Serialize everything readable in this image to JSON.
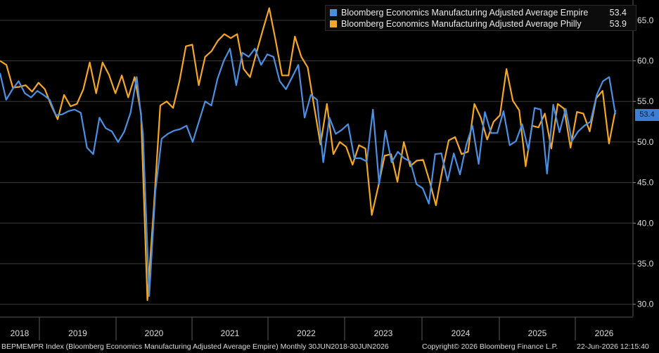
{
  "chart_data": {
    "type": "line",
    "x_axis": {
      "years": [
        "2018",
        "2019",
        "2020",
        "2021",
        "2022",
        "2023",
        "2024",
        "2025",
        "2026"
      ]
    },
    "y_axis": {
      "ylim": [
        28.5,
        67.5
      ],
      "ticks": [
        "30.0",
        "35.0",
        "40.0",
        "45.0",
        "50.0",
        "55.0",
        "60.0",
        "65.0"
      ],
      "position": "right"
    },
    "grid": true,
    "legend_placement": "top-right",
    "series": [
      {
        "name": "Bloomberg Economics Manufacturing Adjusted Average Empire",
        "legend_value": "53.4",
        "color": "#4a90e2",
        "values": [
          58.5,
          55.2,
          56.5,
          57.5,
          56.0,
          55.5,
          56.3,
          55.8,
          55.2,
          53.3,
          53.4,
          53.8,
          54.0,
          53.6,
          49.3,
          48.5,
          53.0,
          51.7,
          51.3,
          50.0,
          51.3,
          53.6,
          58.0,
          51.0,
          31.0,
          44.0,
          50.4,
          51.0,
          51.4,
          51.6,
          52.0,
          50.0,
          52.5,
          55.0,
          54.5,
          57.8,
          60.0,
          61.5,
          57.0,
          61.0,
          60.5,
          61.5,
          59.5,
          60.8,
          60.5,
          57.5,
          56.5,
          58.0,
          59.5,
          53.0,
          55.8,
          55.2,
          47.5,
          53.0,
          51.0,
          51.5,
          52.2,
          48.0,
          48.0,
          47.6,
          54.0,
          44.8,
          51.4,
          47.5,
          48.8,
          48.0,
          47.6,
          44.8,
          44.3,
          42.4,
          48.5,
          48.6,
          45.2,
          48.6,
          46.0,
          49.6,
          52.0,
          47.3,
          53.7,
          51.1,
          51.1,
          53.8,
          49.6,
          50.1,
          52.2,
          49.0,
          54.2,
          54.0,
          46.1,
          54.6,
          51.2,
          54.1,
          50.1,
          51.3,
          52.0,
          52.5,
          55.8,
          57.5,
          58.0,
          53.4
        ],
        "end_tag": "53.4"
      },
      {
        "name": "Bloomberg Economics Manufacturing Adjusted Average Philly",
        "legend_value": "53.9",
        "color": "#f5a623",
        "values": [
          60.0,
          59.5,
          56.7,
          56.8,
          57.0,
          56.2,
          57.3,
          56.5,
          54.5,
          52.8,
          55.8,
          54.4,
          54.7,
          56.5,
          59.8,
          56.0,
          59.8,
          58.3,
          56.0,
          58.2,
          55.5,
          58.0,
          53.5,
          30.5,
          42.0,
          54.5,
          55.0,
          54.2,
          57.5,
          61.8,
          62.0,
          57.0,
          60.5,
          61.2,
          62.5,
          63.3,
          62.8,
          63.3,
          59.0,
          58.0,
          61.0,
          63.8,
          66.5,
          62.5,
          58.2,
          58.2,
          63.0,
          60.5,
          59.2,
          54.4,
          49.7,
          54.7,
          48.5,
          50.0,
          49.4,
          47.2,
          49.6,
          49.2,
          41.0,
          44.5,
          48.3,
          48.5,
          45.1,
          50.0,
          47.0,
          47.7,
          47.8,
          45.2,
          42.2,
          46.5,
          50.2,
          50.6,
          48.5,
          48.8,
          54.7,
          53.0,
          50.3,
          52.5,
          53.3,
          59.0,
          55.1,
          53.9,
          47.0,
          52.0,
          51.8,
          53.5,
          49.2,
          54.7,
          54.1,
          49.3,
          53.7,
          53.5,
          51.3,
          55.4,
          56.3,
          49.8,
          53.9
        ]
      }
    ]
  },
  "footer": {
    "ticker": "BEPMEMPR Index (Bloomberg Economics Manufacturing Adjusted Average Empire) Monthly 30JUN2018-30JUN2026",
    "copyright": "Copyright© 2026 Bloomberg Finance L.P.",
    "timestamp": "22-Jun-2026 12:15:40"
  }
}
